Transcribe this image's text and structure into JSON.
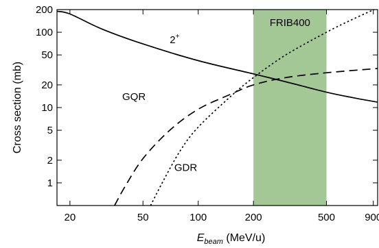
{
  "chart_data": {
    "type": "line",
    "title": "",
    "xlabel": "(MeV/u)",
    "xlabel_symbol": "E",
    "xlabel_subscript": "beam",
    "ylabel": "Cross section (mb)",
    "xscale": "log",
    "yscale": "log",
    "xlim": [
      17,
      950
    ],
    "ylim": [
      0.5,
      200
    ],
    "xticks": [
      20,
      50,
      100,
      200,
      500,
      900
    ],
    "xtick_labels": [
      "20",
      "50",
      "100",
      "200",
      "500",
      "900"
    ],
    "yticks": [
      1,
      2,
      5,
      10,
      20,
      50,
      100,
      200
    ],
    "ytick_labels": [
      "1",
      "2",
      "5",
      "10",
      "20",
      "50",
      "100",
      "200"
    ],
    "shaded_region": {
      "label": "FRIB400",
      "x_range": [
        200,
        500
      ],
      "color": "#a3c795"
    },
    "series": [
      {
        "name": "2+",
        "label_main": "2",
        "label_sup": "+",
        "style": "solid",
        "x": [
          17,
          20,
          30,
          50,
          100,
          200,
          300,
          500,
          700,
          950
        ],
        "y": [
          190,
          175,
          110,
          70,
          42,
          28,
          22,
          16,
          13.5,
          11.8
        ]
      },
      {
        "name": "GQR",
        "style": "dashed",
        "x": [
          35,
          40,
          50,
          70,
          100,
          150,
          200,
          300,
          500,
          950
        ],
        "y": [
          0.5,
          0.9,
          2.1,
          5,
          9.5,
          15,
          20,
          25,
          29,
          33
        ]
      },
      {
        "name": "GDR",
        "style": "dotted",
        "x": [
          55,
          65,
          80,
          100,
          150,
          200,
          300,
          500,
          700,
          950
        ],
        "y": [
          0.5,
          1.1,
          2.7,
          5.5,
          14,
          25,
          50,
          100,
          150,
          210
        ]
      }
    ],
    "annotations": [
      {
        "text": "GQR",
        "x": 45,
        "y": 14
      },
      {
        "text": "GDR",
        "x": 85,
        "y": 1.6
      }
    ]
  }
}
